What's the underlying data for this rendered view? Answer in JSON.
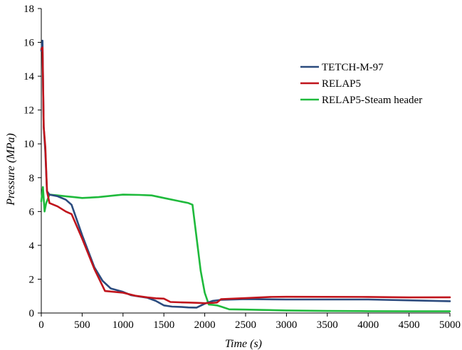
{
  "chart_data": {
    "type": "line",
    "title": "",
    "xlabel": "Time (s)",
    "ylabel": "Pressure (MPa)",
    "xlim": [
      0,
      5000
    ],
    "ylim": [
      0,
      18
    ],
    "xticks": [
      0,
      500,
      1000,
      1500,
      2000,
      2500,
      3000,
      3500,
      4000,
      4500,
      5000
    ],
    "yticks": [
      0,
      2,
      4,
      6,
      8,
      10,
      12,
      14,
      16,
      18
    ],
    "grid": false,
    "legend_position": "top-right",
    "series": [
      {
        "name": "TETCH-M-97",
        "color": "#2b4b7e",
        "x": [
          0,
          15,
          30,
          50,
          70,
          100,
          200,
          300,
          370,
          500,
          650,
          750,
          850,
          1000,
          1100,
          1200,
          1300,
          1400,
          1500,
          1600,
          1700,
          1800,
          1900,
          2000,
          2100,
          2200,
          2500,
          3000,
          4000,
          4500,
          5000
        ],
        "y": [
          15.5,
          16.1,
          11.0,
          9.5,
          7.2,
          7.0,
          6.9,
          6.7,
          6.4,
          4.6,
          2.7,
          1.9,
          1.45,
          1.25,
          1.05,
          0.97,
          0.9,
          0.72,
          0.45,
          0.38,
          0.36,
          0.33,
          0.32,
          0.55,
          0.72,
          0.78,
          0.82,
          0.8,
          0.8,
          0.75,
          0.7
        ]
      },
      {
        "name": "RELAP5",
        "color": "#c0141c",
        "x": [
          0,
          15,
          30,
          50,
          70,
          100,
          200,
          300,
          370,
          500,
          650,
          780,
          850,
          1000,
          1150,
          1300,
          1400,
          1500,
          1580,
          1700,
          1800,
          1900,
          2000,
          2100,
          2150,
          2200,
          2500,
          2800,
          3000,
          4000,
          4500,
          5000
        ],
        "y": [
          15.6,
          15.7,
          11.0,
          9.8,
          7.2,
          6.5,
          6.3,
          6.0,
          5.85,
          4.4,
          2.6,
          1.3,
          1.27,
          1.2,
          1.02,
          0.92,
          0.87,
          0.85,
          0.65,
          0.63,
          0.62,
          0.6,
          0.58,
          0.6,
          0.62,
          0.82,
          0.88,
          0.95,
          0.96,
          0.95,
          0.92,
          0.93
        ]
      },
      {
        "name": "RELAP5-Steam header",
        "color": "#1fba3c",
        "x": [
          0,
          20,
          40,
          60,
          80,
          100,
          200,
          300,
          400,
          500,
          700,
          900,
          1000,
          1200,
          1350,
          1500,
          1650,
          1800,
          1850,
          1950,
          2000,
          2050,
          2100,
          2150,
          2200,
          2300,
          2500,
          3000,
          3500,
          4000,
          4500,
          5000
        ],
        "y": [
          6.6,
          7.45,
          6.0,
          6.5,
          6.75,
          7.0,
          6.95,
          6.9,
          6.85,
          6.8,
          6.85,
          6.95,
          7.0,
          6.98,
          6.95,
          6.8,
          6.65,
          6.5,
          6.4,
          2.5,
          1.2,
          0.5,
          0.48,
          0.45,
          0.38,
          0.22,
          0.2,
          0.15,
          0.12,
          0.11,
          0.1,
          0.1
        ]
      }
    ]
  }
}
